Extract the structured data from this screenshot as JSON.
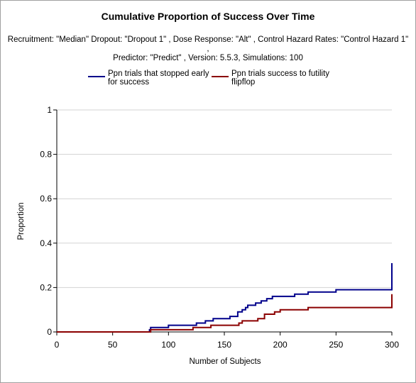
{
  "chart_data": {
    "type": "line",
    "title": "Cumulative Proportion of Success Over Time",
    "subtitle_lines": [
      "Recruitment: \"Median\" Dropout: \"Dropout 1\" , Dose Response: \"Alt\" , Control Hazard Rates: \"Control Hazard 1\" ,",
      "Predictor: \"Predict\" , Version: 5.5.3, Simulations: 100"
    ],
    "xlabel": "Number of Subjects",
    "ylabel": "Proportion",
    "xlim": [
      0,
      300
    ],
    "ylim": [
      0,
      1
    ],
    "x_ticks": [
      "0",
      "50",
      "100",
      "150",
      "200",
      "250",
      "300"
    ],
    "x_tick_values": [
      0,
      50,
      100,
      150,
      200,
      250,
      300
    ],
    "y_ticks": [
      "0",
      "0.2",
      "0.4",
      "0.6",
      "0.8",
      "1"
    ],
    "y_tick_values": [
      0,
      0.2,
      0.4,
      0.6,
      0.8,
      1
    ],
    "grid": "horizontal",
    "legend_position": "top",
    "series": [
      {
        "name": "Ppn trials that stopped early for success",
        "legend_lines": [
          "Ppn trials that stopped early",
          "for success"
        ],
        "color": "#00008b",
        "step": true,
        "points": [
          [
            0,
            0
          ],
          [
            83,
            0
          ],
          [
            83,
            0.01
          ],
          [
            84,
            0.01
          ],
          [
            84,
            0.02
          ],
          [
            100,
            0.02
          ],
          [
            100,
            0.03
          ],
          [
            125,
            0.03
          ],
          [
            125,
            0.04
          ],
          [
            133,
            0.04
          ],
          [
            133,
            0.05
          ],
          [
            140,
            0.05
          ],
          [
            140,
            0.06
          ],
          [
            155,
            0.06
          ],
          [
            155,
            0.07
          ],
          [
            162,
            0.07
          ],
          [
            162,
            0.09
          ],
          [
            166,
            0.09
          ],
          [
            166,
            0.1
          ],
          [
            169,
            0.1
          ],
          [
            169,
            0.11
          ],
          [
            171,
            0.11
          ],
          [
            171,
            0.12
          ],
          [
            178,
            0.12
          ],
          [
            178,
            0.13
          ],
          [
            183,
            0.13
          ],
          [
            183,
            0.14
          ],
          [
            188,
            0.14
          ],
          [
            188,
            0.15
          ],
          [
            193,
            0.15
          ],
          [
            193,
            0.16
          ],
          [
            213,
            0.16
          ],
          [
            213,
            0.17
          ],
          [
            225,
            0.17
          ],
          [
            225,
            0.18
          ],
          [
            250,
            0.18
          ],
          [
            250,
            0.19
          ],
          [
            300,
            0.19
          ],
          [
            300,
            0.31
          ]
        ]
      },
      {
        "name": "Ppn trials success to futility flipflop",
        "legend_lines": [
          "Ppn trials success to futility",
          "flipflop"
        ],
        "color": "#8b0000",
        "step": true,
        "points": [
          [
            0,
            0
          ],
          [
            84,
            0
          ],
          [
            84,
            0.01
          ],
          [
            122,
            0.01
          ],
          [
            122,
            0.02
          ],
          [
            138,
            0.02
          ],
          [
            138,
            0.03
          ],
          [
            163,
            0.03
          ],
          [
            163,
            0.04
          ],
          [
            166,
            0.04
          ],
          [
            166,
            0.05
          ],
          [
            180,
            0.05
          ],
          [
            180,
            0.06
          ],
          [
            186,
            0.06
          ],
          [
            186,
            0.08
          ],
          [
            195,
            0.08
          ],
          [
            195,
            0.09
          ],
          [
            200,
            0.09
          ],
          [
            200,
            0.1
          ],
          [
            225,
            0.1
          ],
          [
            225,
            0.11
          ],
          [
            300,
            0.11
          ],
          [
            300,
            0.17
          ]
        ]
      }
    ]
  }
}
